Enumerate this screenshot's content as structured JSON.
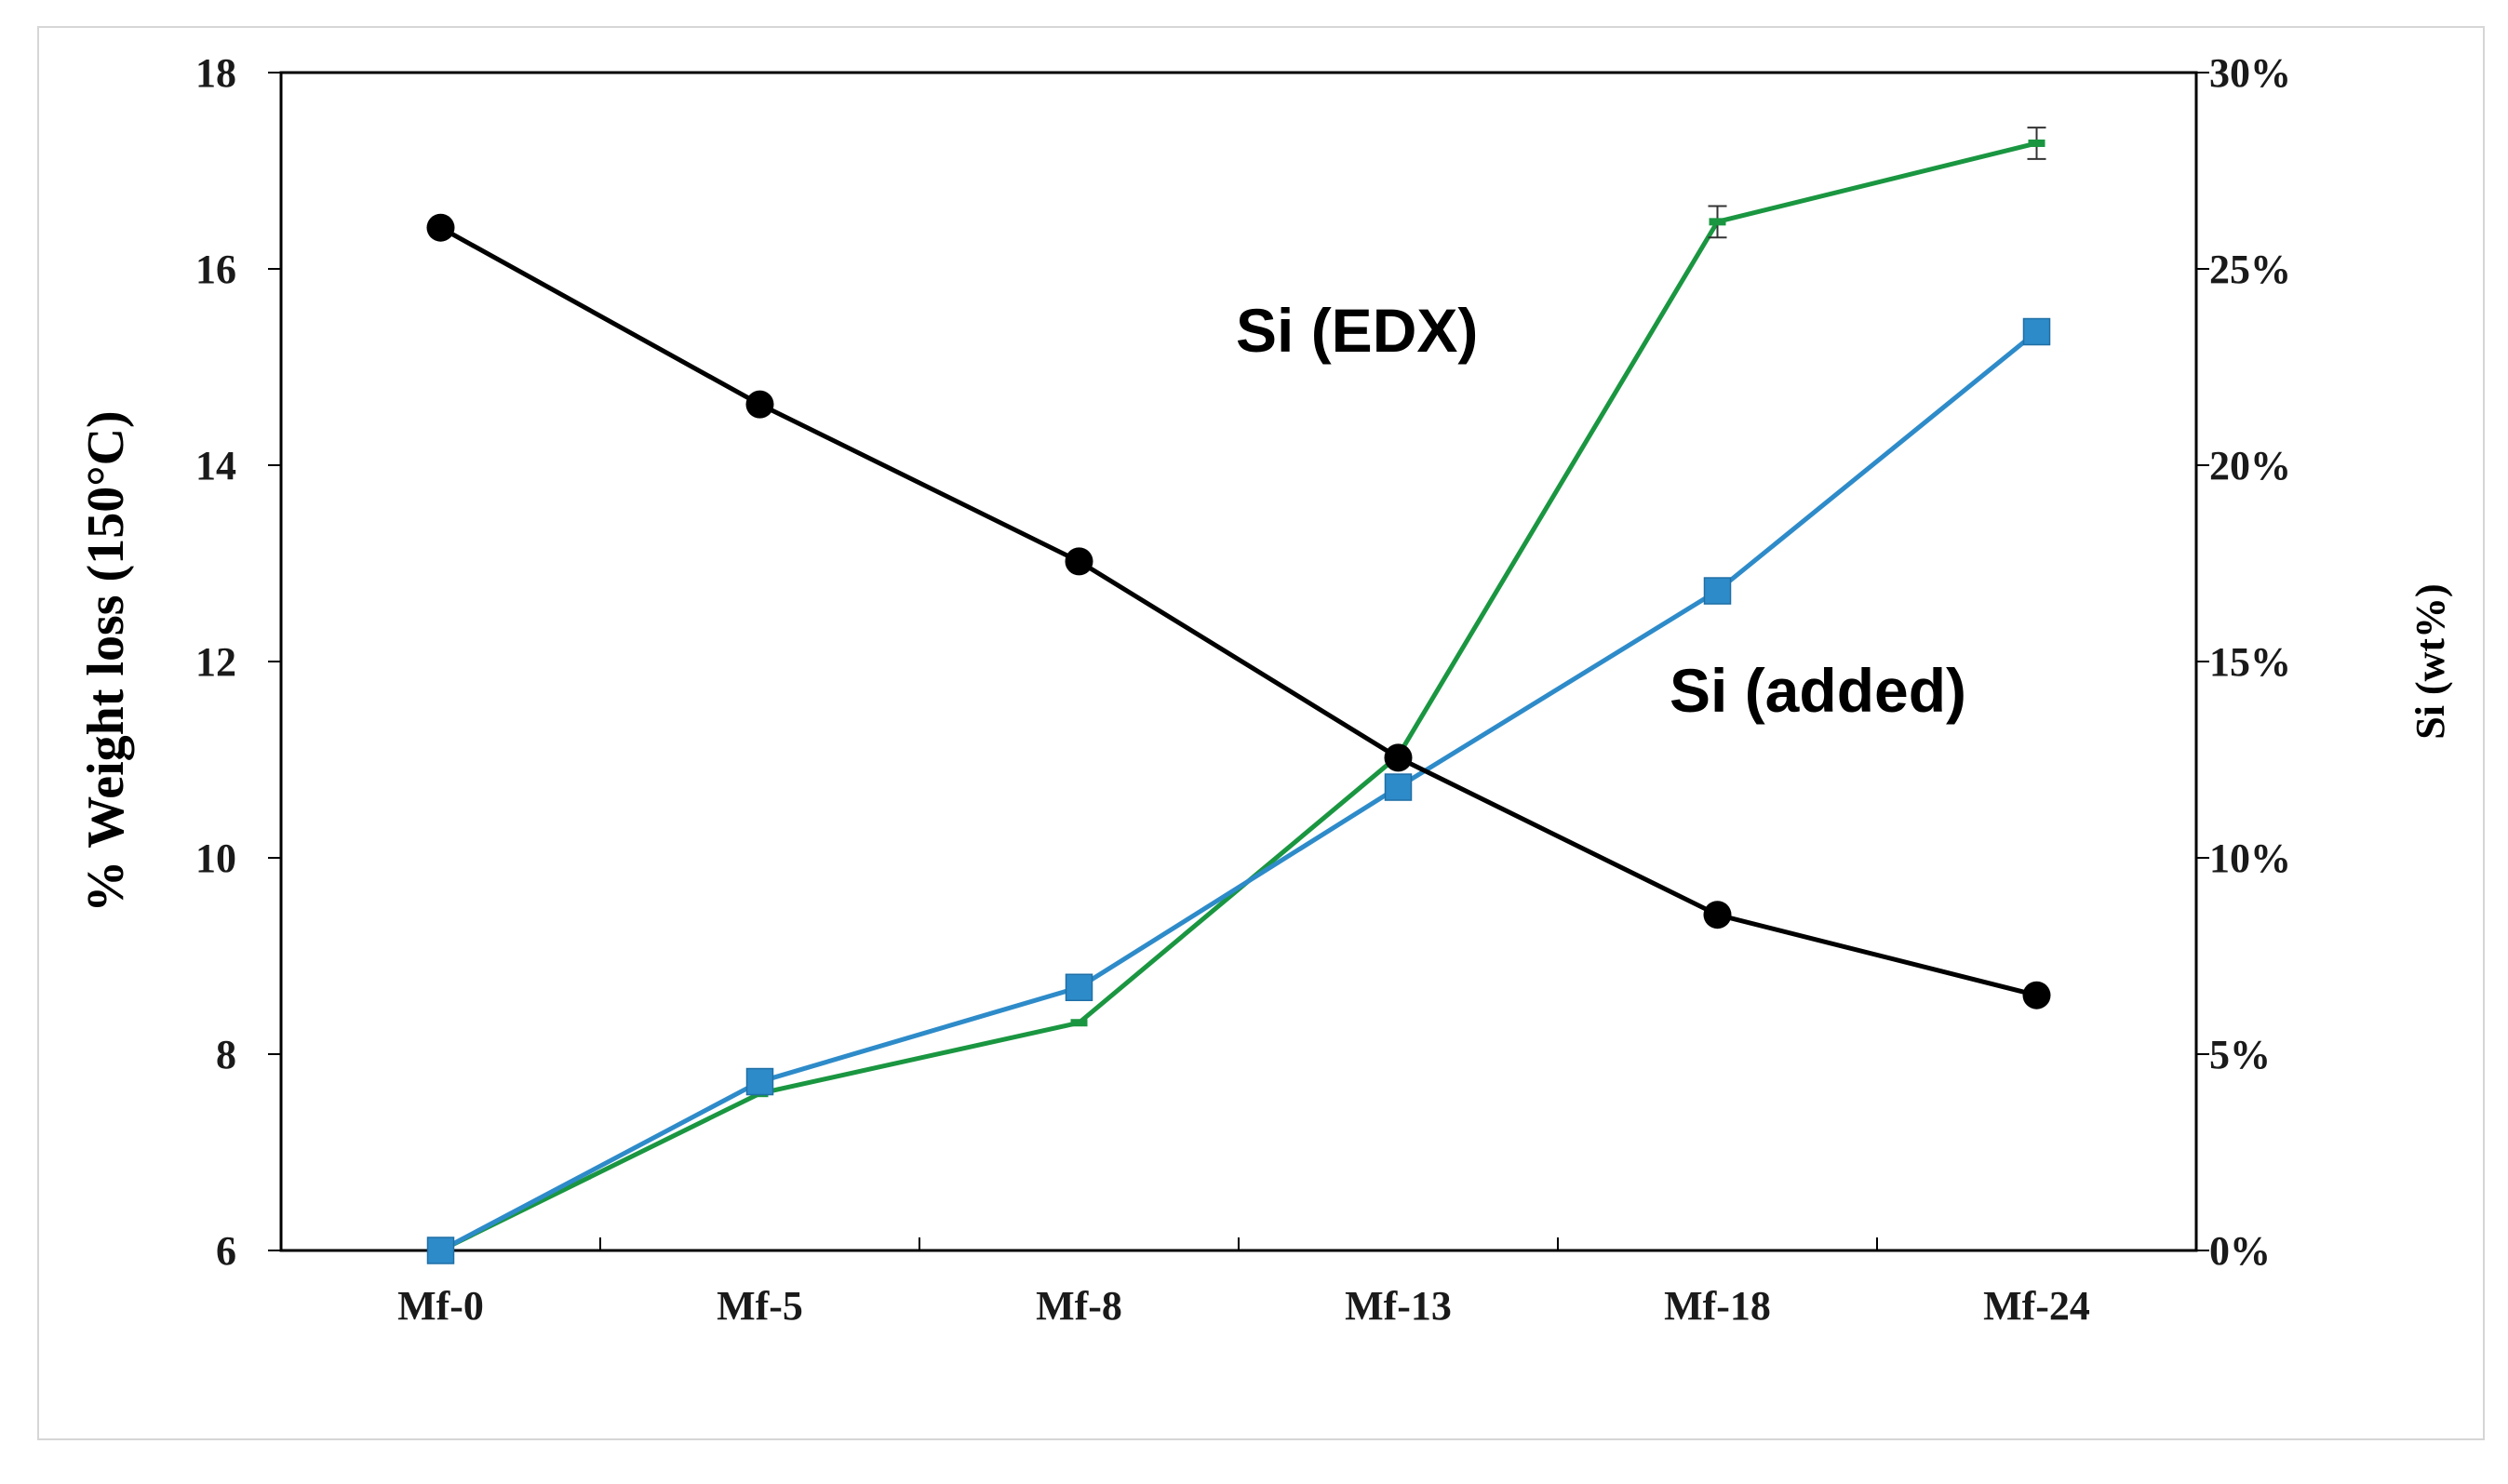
{
  "chart_data": {
    "type": "line",
    "categories": [
      "Mf-0",
      "Mf-5",
      "Mf-8",
      "Mf-13",
      "Mf-18",
      "Mf-24"
    ],
    "y_left": {
      "label": "% Weight loss (150°C)",
      "lim": [
        6,
        18
      ],
      "ticks": [
        "6",
        "8",
        "10",
        "12",
        "14",
        "16",
        "18"
      ]
    },
    "y_right": {
      "label": "Si (wt%)",
      "lim": [
        0,
        30
      ],
      "ticks": [
        "0%",
        "5%",
        "10%",
        "15%",
        "20%",
        "25%",
        "30%"
      ]
    },
    "series": [
      {
        "axis": "left",
        "values": [
          16.42,
          14.62,
          13.02,
          11.02,
          9.42,
          8.6
        ],
        "color": "#000000",
        "marker": "circle"
      },
      {
        "name": "Si (EDX)",
        "axis": "right",
        "values": [
          0,
          4,
          5.8,
          12.6,
          26.2,
          28.2
        ],
        "error": [
          0,
          0,
          0,
          0,
          0.4,
          0.4
        ],
        "color": "#1a9641",
        "marker": "dash"
      },
      {
        "name": "Si (added)",
        "axis": "right",
        "values": [
          0,
          4.3,
          6.7,
          11.8,
          16.8,
          23.4
        ],
        "color": "#2e8bc9",
        "marker": "square"
      }
    ],
    "annotations": [
      "Si (EDX)",
      "Si (added)"
    ],
    "grid": false,
    "legend": "none"
  }
}
